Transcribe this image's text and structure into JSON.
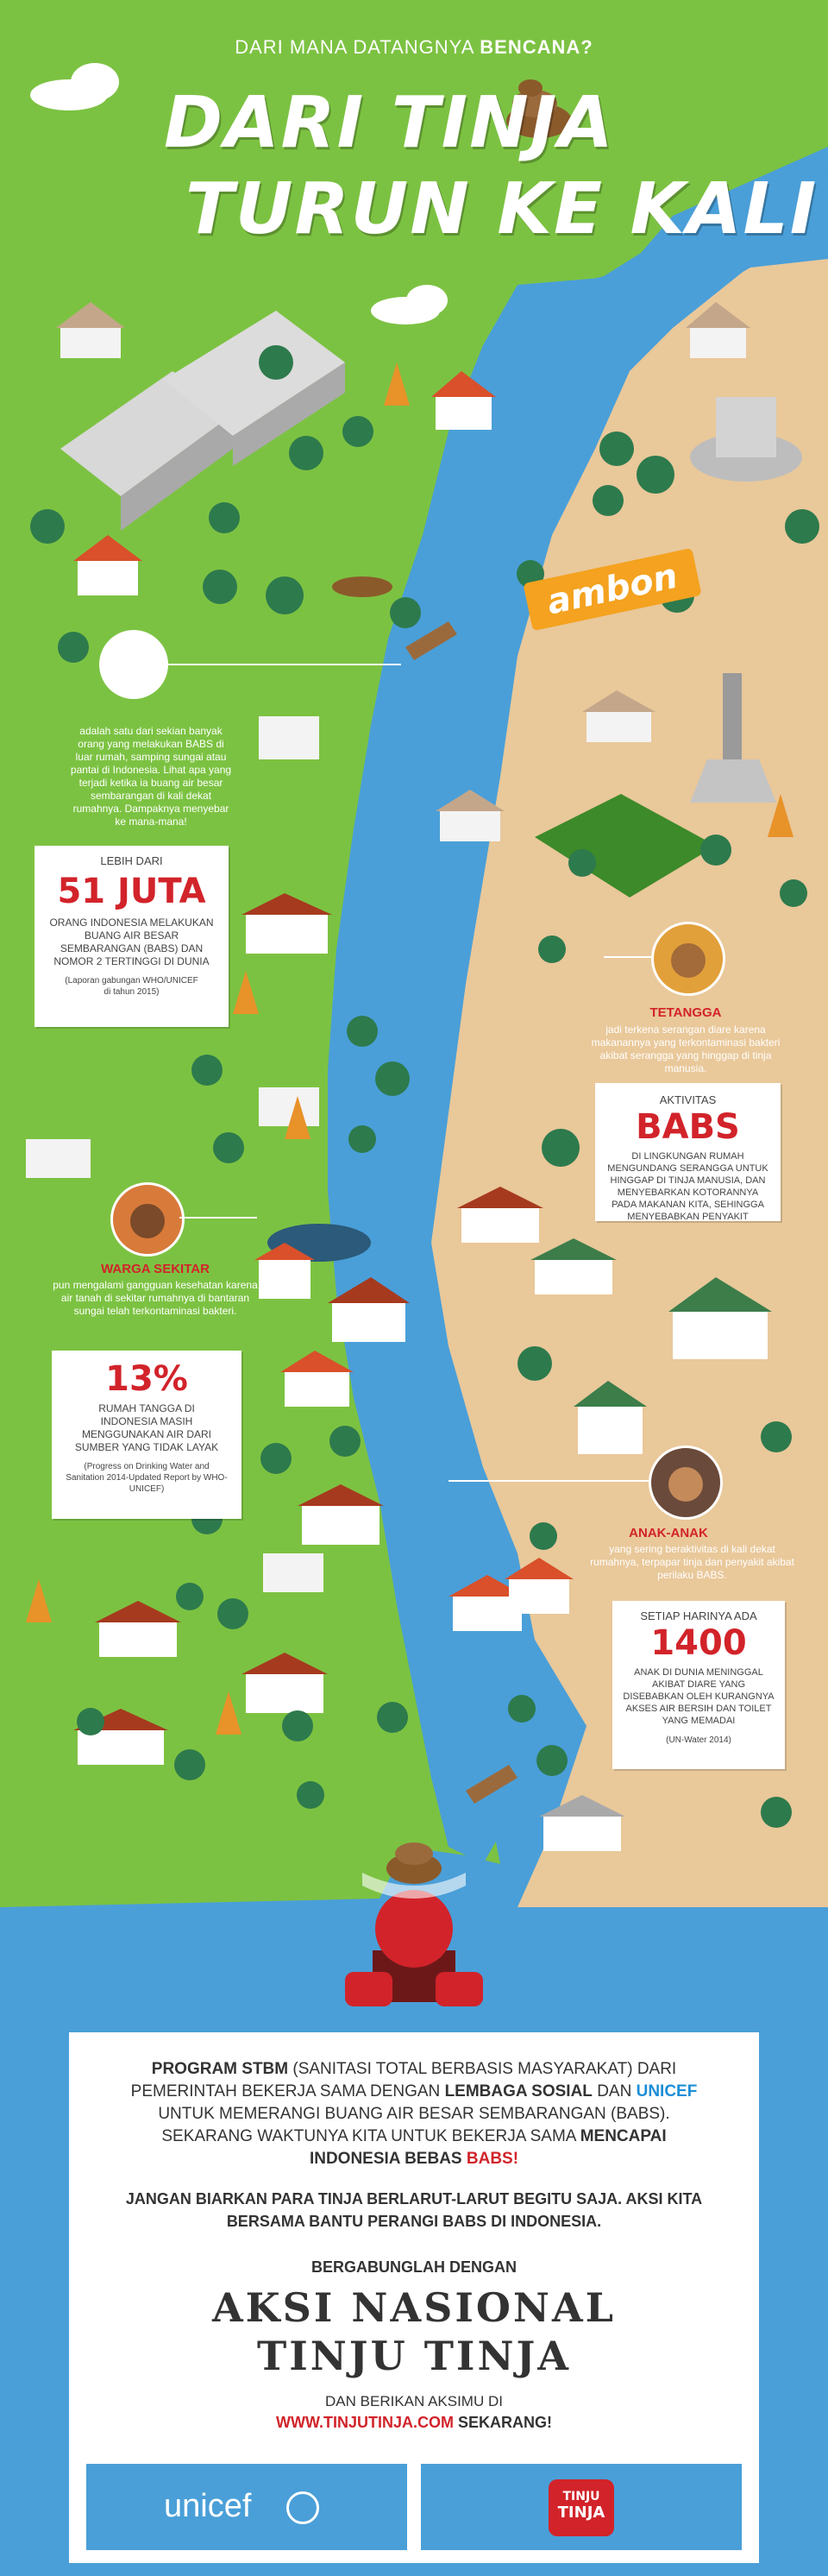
{
  "header": {
    "subtitle_a": "DARI MANA DATANGNYA",
    "subtitle_b": "BENCANA?",
    "title_line1": "DARI TINJA",
    "title_line2": "TURUN KE KALI"
  },
  "map_label": "ambon",
  "intro_text": "adalah satu dari sekian banyak orang yang melakukan BABS di luar rumah, samping sungai atau pantai di Indonesia. Lihat apa yang terjadi ketika ia buang air besar sembarangan di kali dekat rumahnya. Dampaknya menyebar ke mana-mana!",
  "stat1": {
    "pre": "LEBIH DARI",
    "big": "51 JUTA",
    "body": "ORANG INDONESIA MELAKUKAN BUANG AIR BESAR SEMBARANGAN (BABS) DAN NOMOR 2 TERTINGGI DI DUNIA",
    "source": "(Laporan gabungan WHO/UNICEF di tahun 2015)"
  },
  "tetangga": {
    "title": "TETANGGA",
    "text": "jadi terkena serangan diare karena makanannya yang terkontaminasi bakteri akibat serangga yang hinggap di tinja manusia."
  },
  "babs": {
    "pre": "AKTIVITAS",
    "big": "BABS",
    "body": "DI LINGKUNGAN RUMAH MENGUNDANG SERANGGA UNTUK HINGGAP DI TINJA MANUSIA, DAN MENYEBARKAN KOTORANNYA PADA MAKANAN KITA, SEHINGGA MENYEBABKAN PENYAKIT"
  },
  "warga": {
    "title": "WARGA SEKITAR",
    "text": "pun mengalami gangguan kesehatan karena air tanah di sekitar rumahnya di bantaran sungai telah terkontaminasi bakteri."
  },
  "stat2": {
    "big": "13%",
    "body": "RUMAH TANGGA DI INDONESIA MASIH MENGGUNAKAN AIR DARI SUMBER YANG TIDAK LAYAK",
    "source": "(Progress on Drinking Water and Sanitation 2014-Updated Report by WHO- UNICEF)"
  },
  "anak": {
    "title": "ANAK-ANAK",
    "text": "yang sering beraktivitas di kali dekat rumahnya, terpapar tinja dan penyakit akibat perilaku BABS."
  },
  "stat3": {
    "pre": "SETIAP HARINYA ADA",
    "big": "1400",
    "body": "ANAK DI DUNIA MENINGGAL AKIBAT DIARE YANG DISEBABKAN OLEH KURANGNYA AKSES AIR BERSIH DAN TOILET YANG MEMADAI",
    "source": "(UN-Water 2014)"
  },
  "bottom": {
    "p1_a": "PROGRAM STBM",
    "p1_b": "(SANITASI TOTAL BERBASIS MASYARAKAT) DARI PEMERINTAH BEKERJA SAMA DENGAN",
    "p1_c": "LEMBAGA SOSIAL",
    "p1_d": "DAN",
    "p1_e": "UNICEF",
    "p1_f": "UNTUK MEMERANGI BUANG AIR BESAR SEMBARANGAN (BABS). SEKARANG WAKTUNYA KITA UNTUK BEKERJA SAMA",
    "p1_g": "MENCAPAI INDONESIA BEBAS",
    "p1_h": "BABS!",
    "p2": "JANGAN BIARKAN PARA TINJA BERLARUT-LARUT BEGITU SAJA. AKSI KITA BERSAMA BANTU PERANGI BABS DI INDONESIA.",
    "join": "BERGABUNGLAH DENGAN",
    "campaign1": "AKSI NASIONAL",
    "campaign2": "TINJU TINJA",
    "cta": "DAN BERIKAN AKSIMU DI",
    "url": "WWW.TINJUTINJA.COM",
    "cta_end": "SEKARANG!",
    "logo_unicef": "unicef",
    "logo_tt1": "TINJU",
    "logo_tt2": "TINJA"
  },
  "colors": {
    "grass": "#7cc242",
    "sand": "#e8c99b",
    "river": "#4a9fd8",
    "accent": "#d2232a",
    "poop": "#8b5a2b"
  }
}
